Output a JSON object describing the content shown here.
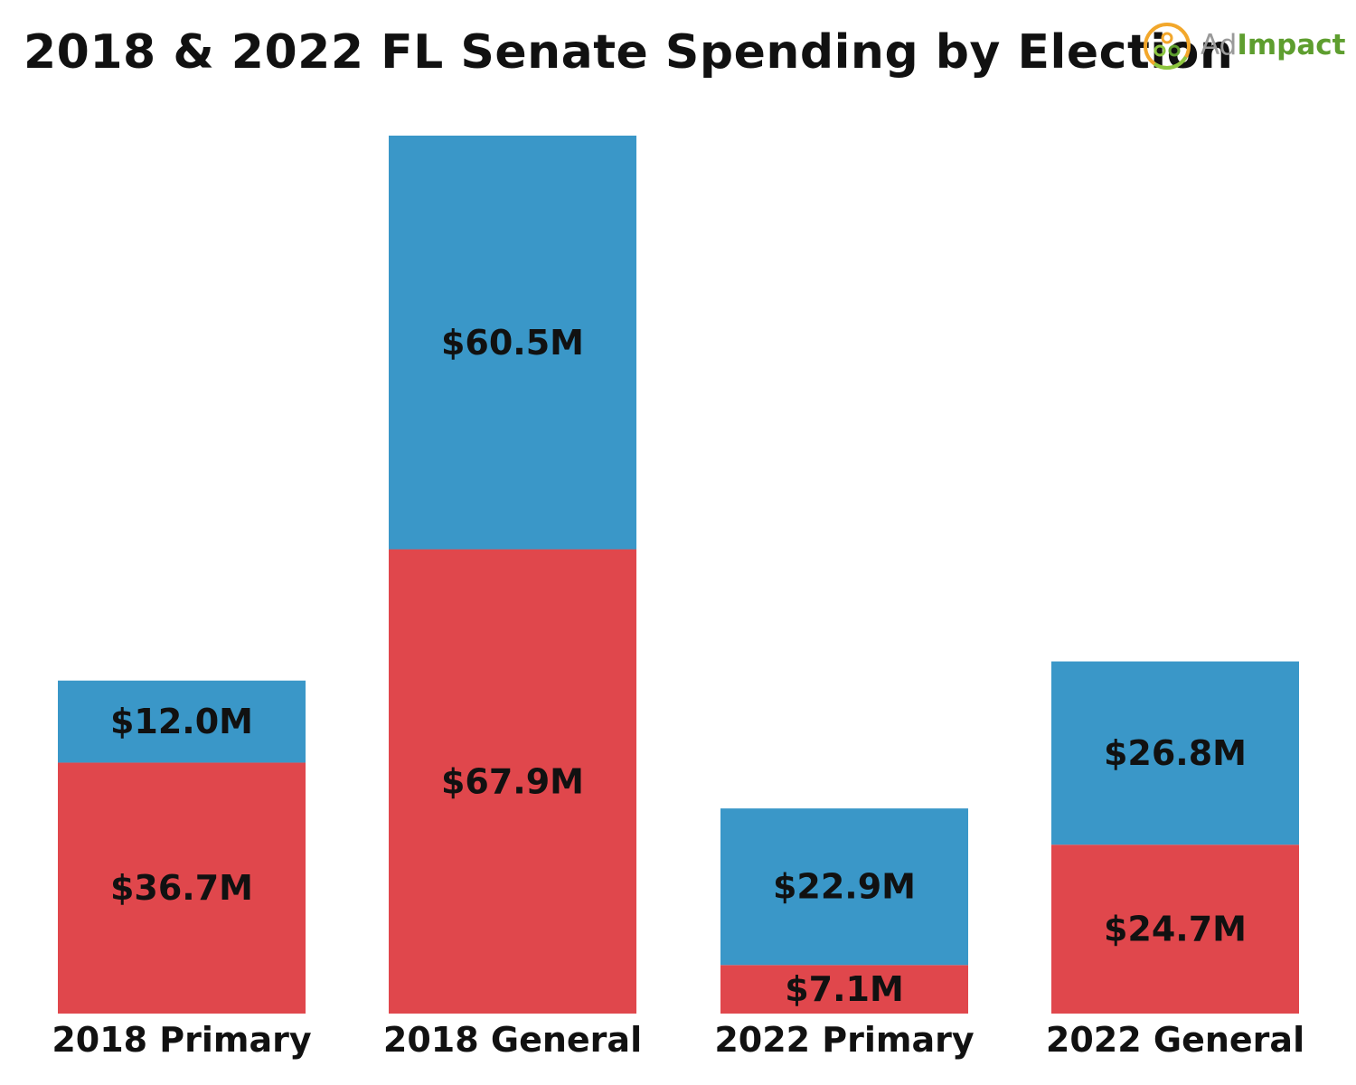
{
  "title": "2018 & 2022 FL Senate Spending by Election",
  "brand": {
    "name_part1": "Ad",
    "name_part2": "Impact",
    "icon": "adimpact-logo-icon"
  },
  "colors": {
    "republican": "#E0474C",
    "democrat": "#3A97C8",
    "text": "#111111",
    "brand_green": "#5e9e2f"
  },
  "chart_data": {
    "type": "bar",
    "stacked": true,
    "categories": [
      "2018 Primary",
      "2018 General",
      "2022 Primary",
      "2022 General"
    ],
    "series": [
      {
        "color": "#E0474C",
        "values": [
          36.7,
          67.9,
          7.1,
          24.7
        ],
        "labels": [
          "$36.7M",
          "$67.9M",
          "$7.1M",
          "$24.7M"
        ]
      },
      {
        "color": "#3A97C8",
        "values": [
          12.0,
          60.5,
          22.9,
          26.8
        ],
        "labels": [
          "$12.0M",
          "$60.5M",
          "$22.9M",
          "$26.8M"
        ]
      }
    ],
    "title": "2018 & 2022 FL Senate Spending by Election",
    "xlabel": "",
    "ylabel": "",
    "ylim": [
      0,
      128.4
    ],
    "grid": false,
    "legend": "none"
  }
}
